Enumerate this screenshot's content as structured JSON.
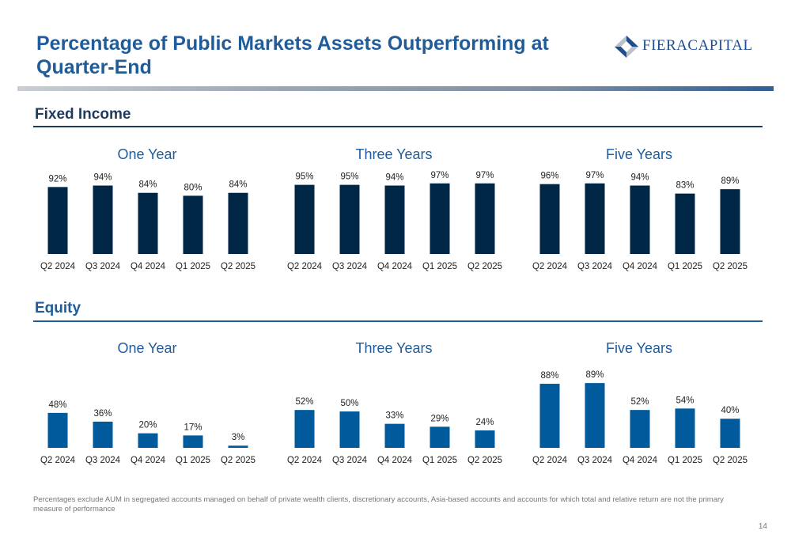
{
  "header": {
    "title": "Percentage of Public Markets Assets Outperforming at Quarter-End",
    "logo_text": "FIERACAPITAL"
  },
  "colors": {
    "title": "#1f5c99",
    "fixed_income_bar": "#002646",
    "equity_bar": "#005a9c",
    "section_rule": "#1f3a5f"
  },
  "sections": {
    "fixed_income": {
      "title": "Fixed Income"
    },
    "equity": {
      "title": "Equity"
    }
  },
  "chart_data": [
    {
      "id": "fi-1y",
      "section": "fixed_income",
      "type": "bar",
      "title": "One Year",
      "categories": [
        "Q2 2024",
        "Q3 2024",
        "Q4 2024",
        "Q1 2025",
        "Q2 2025"
      ],
      "values": [
        92,
        94,
        84,
        80,
        84
      ],
      "value_labels": [
        "92%",
        "94%",
        "84%",
        "80%",
        "84%"
      ],
      "ylim": [
        0,
        100
      ],
      "color": "#002646"
    },
    {
      "id": "fi-3y",
      "section": "fixed_income",
      "type": "bar",
      "title": "Three Years",
      "categories": [
        "Q2 2024",
        "Q3 2024",
        "Q4 2024",
        "Q1 2025",
        "Q2 2025"
      ],
      "values": [
        95,
        95,
        94,
        97,
        97
      ],
      "value_labels": [
        "95%",
        "95%",
        "94%",
        "97%",
        "97%"
      ],
      "ylim": [
        0,
        100
      ],
      "color": "#002646"
    },
    {
      "id": "fi-5y",
      "section": "fixed_income",
      "type": "bar",
      "title": "Five Years",
      "categories": [
        "Q2 2024",
        "Q3 2024",
        "Q4 2024",
        "Q1 2025",
        "Q2 2025"
      ],
      "values": [
        96,
        97,
        94,
        83,
        89
      ],
      "value_labels": [
        "96%",
        "97%",
        "94%",
        "83%",
        "89%"
      ],
      "ylim": [
        0,
        100
      ],
      "color": "#002646"
    },
    {
      "id": "eq-1y",
      "section": "equity",
      "type": "bar",
      "title": "One Year",
      "categories": [
        "Q2 2024",
        "Q3 2024",
        "Q4 2024",
        "Q1 2025",
        "Q2 2025"
      ],
      "values": [
        48,
        36,
        20,
        17,
        3
      ],
      "value_labels": [
        "48%",
        "36%",
        "20%",
        "17%",
        "3%"
      ],
      "ylim": [
        0,
        100
      ],
      "color": "#005a9c"
    },
    {
      "id": "eq-3y",
      "section": "equity",
      "type": "bar",
      "title": "Three Years",
      "categories": [
        "Q2 2024",
        "Q3 2024",
        "Q4 2024",
        "Q1 2025",
        "Q2 2025"
      ],
      "values": [
        52,
        50,
        33,
        29,
        24
      ],
      "value_labels": [
        "52%",
        "50%",
        "33%",
        "29%",
        "24%"
      ],
      "ylim": [
        0,
        100
      ],
      "color": "#005a9c"
    },
    {
      "id": "eq-5y",
      "section": "equity",
      "type": "bar",
      "title": "Five Years",
      "categories": [
        "Q2 2024",
        "Q3 2024",
        "Q4 2024",
        "Q1 2025",
        "Q2 2025"
      ],
      "values": [
        88,
        89,
        52,
        54,
        40
      ],
      "value_labels": [
        "88%",
        "89%",
        "52%",
        "54%",
        "40%"
      ],
      "ylim": [
        0,
        100
      ],
      "color": "#005a9c"
    }
  ],
  "footer": {
    "note": "Percentages exclude AUM in segregated accounts managed on behalf of private wealth clients, discretionary accounts, Asia-based accounts and accounts for which total and relative return are not the primary measure of performance",
    "page_number": "14"
  }
}
